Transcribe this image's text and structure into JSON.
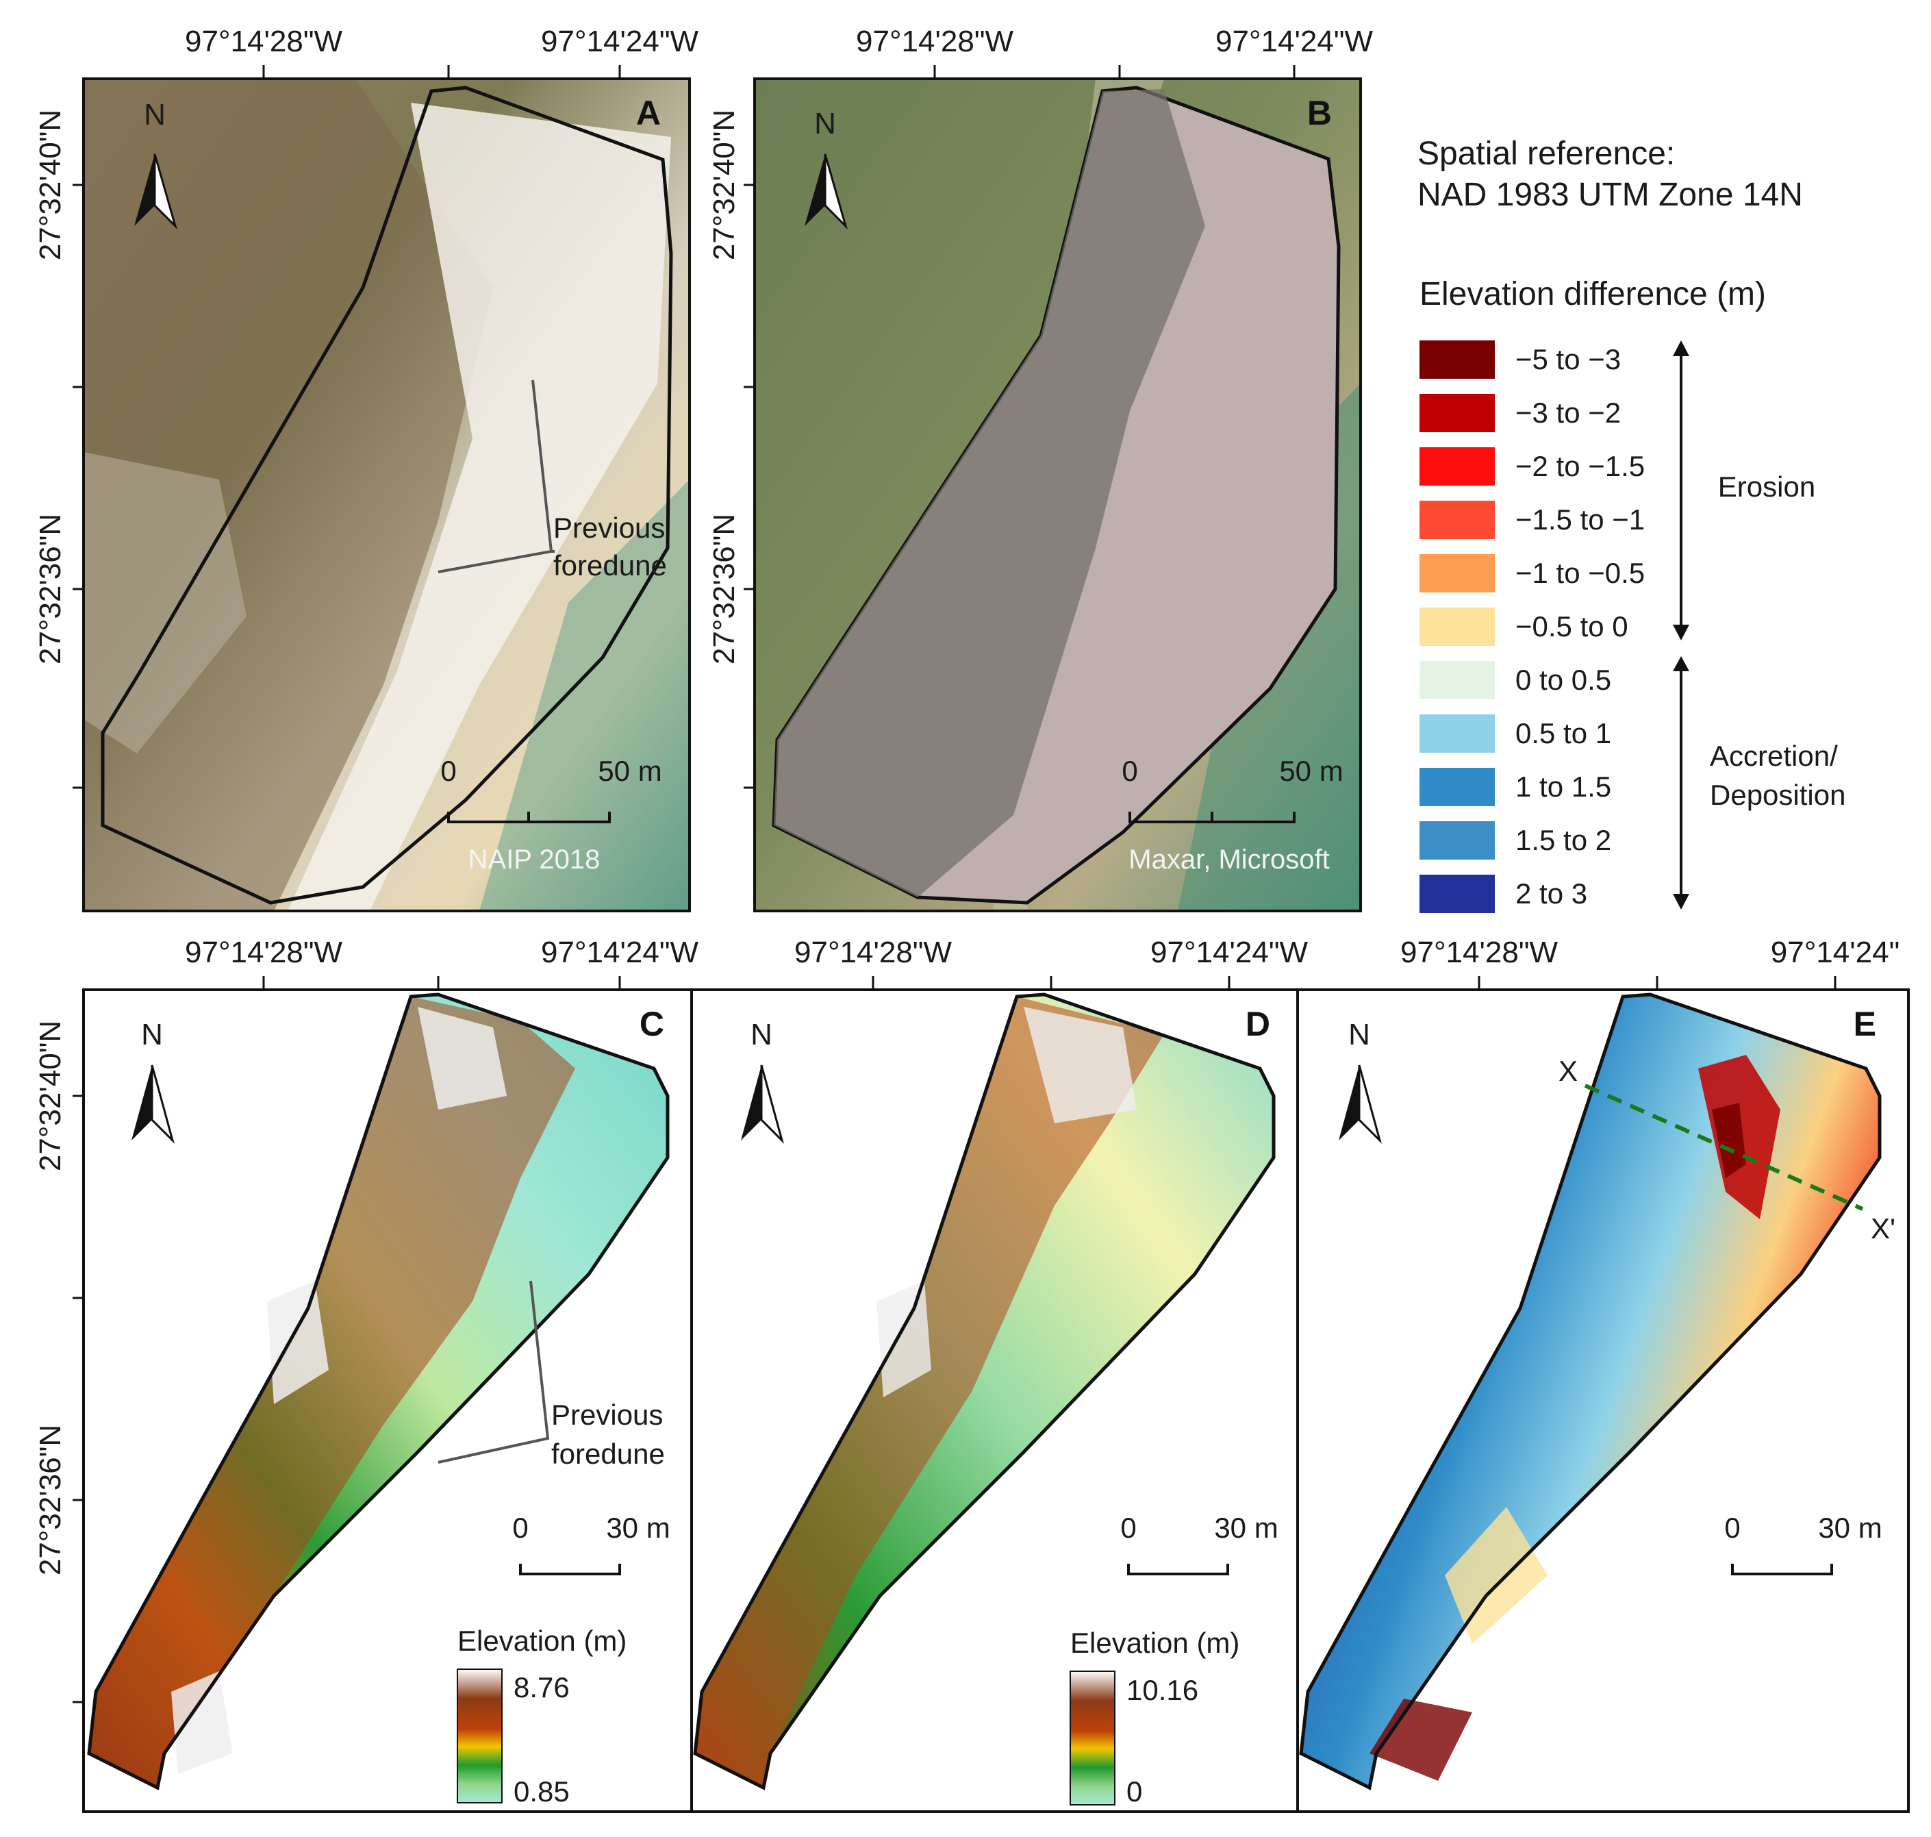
{
  "coords": {
    "lon_left": "97°14'28\"W",
    "lon_right": "97°14'24\"W",
    "lon_right_truncated": "97°14'24\"",
    "lat_top": "27°32'40\"N",
    "lat_bottom": "27°32'36\"N"
  },
  "panels": {
    "A": {
      "letter": "A",
      "scale_zero": "0",
      "scale_max": "50 m",
      "source": "NAIP 2018",
      "annotation_1": "Previous",
      "annotation_2": "foredune"
    },
    "B": {
      "letter": "B",
      "scale_zero": "0",
      "scale_max": "50 m",
      "source": "Maxar, Microsoft"
    },
    "C": {
      "letter": "C",
      "scale_zero": "0",
      "scale_max": "30 m",
      "annotation_1": "Previous",
      "annotation_2": "foredune",
      "elev_title": "Elevation (m)",
      "elev_max": "8.76",
      "elev_min": "0.85"
    },
    "D": {
      "letter": "D",
      "scale_zero": "0",
      "scale_max": "30 m",
      "elev_title": "Elevation (m)",
      "elev_max": "10.16",
      "elev_min": "0"
    },
    "E": {
      "letter": "E",
      "scale_zero": "0",
      "scale_max": "30 m",
      "profile_start": "X",
      "profile_end": "X'"
    }
  },
  "north": "N",
  "spatial_reference": {
    "line1": "Spatial reference:",
    "line2": "NAD 1983 UTM Zone 14N"
  },
  "legend": {
    "title": "Elevation difference (m)",
    "items": [
      {
        "label": "−5 to −3",
        "color": "#7a0000"
      },
      {
        "label": "−3 to −2",
        "color": "#c00000"
      },
      {
        "label": "−2 to −1.5",
        "color": "#ff0d0d"
      },
      {
        "label": "−1.5 to −1",
        "color": "#ff4a33"
      },
      {
        "label": "−1 to −0.5",
        "color": "#fc9d52"
      },
      {
        "label": "−0.5 to 0",
        "color": "#fde299"
      },
      {
        "label": "0 to 0.5",
        "color": "#e4f3e4"
      },
      {
        "label": "0.5 to 1",
        "color": "#8fd2e8"
      },
      {
        "label": "1 to 1.5",
        "color": "#2f8cc8"
      },
      {
        "label": "1.5 to 2",
        "color": "#3b8fc6"
      },
      {
        "label": "2 to 3",
        "color": "#23309b"
      }
    ],
    "erosion": "Erosion",
    "accretion_1": "Accretion/",
    "accretion_2": "Deposition"
  }
}
